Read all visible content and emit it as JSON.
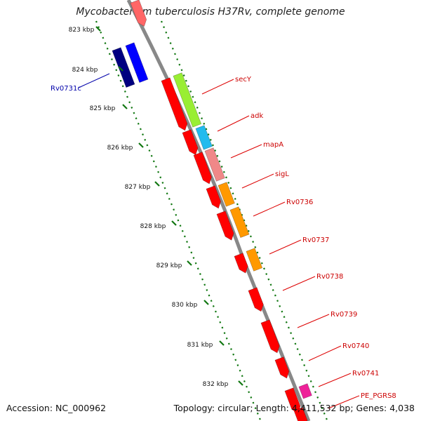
{
  "title": "Mycobacterium tuberculosis H37Rv, complete genome",
  "footer": {
    "accession": "Accession: NC_000962",
    "topology": "Topology: circular; Length: 4,411,532 bp; Genes: 4,038"
  },
  "ticks": [
    "823 kbp",
    "824 kbp",
    "825 kbp",
    "826 kbp",
    "827 kbp",
    "828 kbp",
    "829 kbp",
    "830 kbp",
    "831 kbp",
    "832 kbp"
  ],
  "genes": {
    "reverse": [
      "Rv0731c"
    ],
    "forward": [
      "secY",
      "adk",
      "mapA",
      "sigL",
      "Rv0736",
      "Rv0737",
      "Rv0738",
      "Rv0739",
      "Rv0740",
      "Rv0741",
      "PE_PGRS8"
    ]
  },
  "colors": {
    "red": "#ff0000",
    "navy": "#000080",
    "blue": "#0000ff",
    "lime": "#99ee33",
    "cyan": "#22bbee",
    "salmon": "#f08888",
    "orange": "#ff9900",
    "magenta": "#ee2299",
    "backbone": "#888888",
    "tick_green": "#117711"
  }
}
